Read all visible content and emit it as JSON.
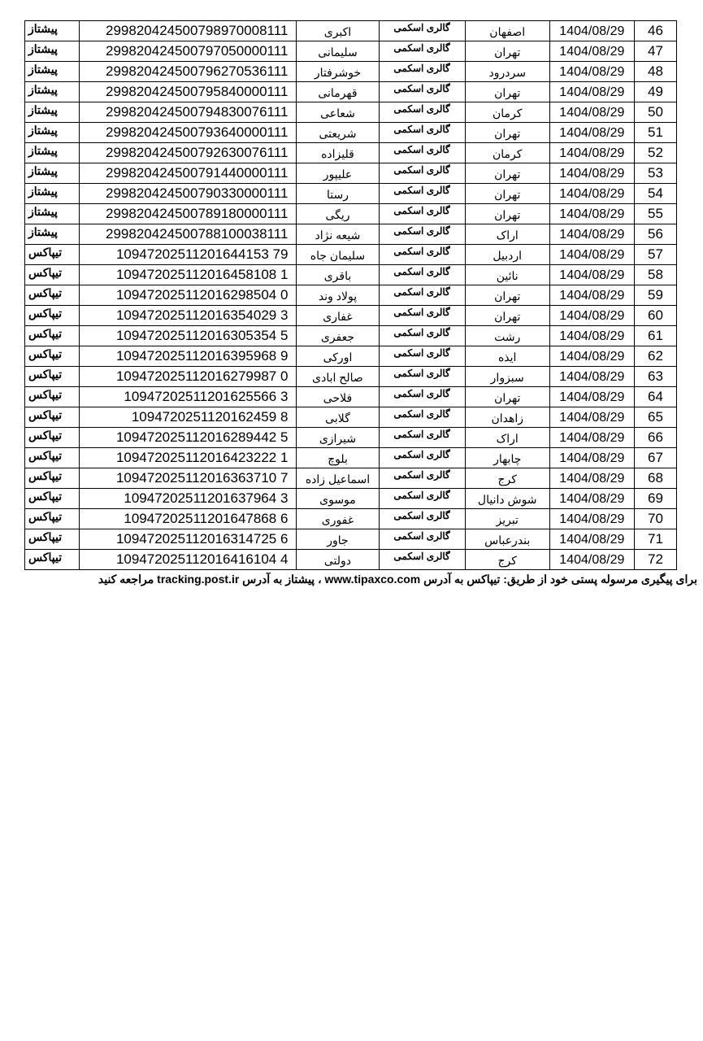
{
  "shop_name": "گالری اسکمی",
  "rows": [
    {
      "num": "46",
      "date": "1404/08/29",
      "city": "اصفهان",
      "name": "اکبری",
      "tracking": "299820424500798970008111",
      "carrier": "پیشتاز"
    },
    {
      "num": "47",
      "date": "1404/08/29",
      "city": "تهران",
      "name": "سلیمانی",
      "tracking": "299820424500797050000111",
      "carrier": "پیشتاز"
    },
    {
      "num": "48",
      "date": "1404/08/29",
      "city": "سردرود",
      "name": "خوشرفتار",
      "tracking": "299820424500796270536111",
      "carrier": "پیشتاز"
    },
    {
      "num": "49",
      "date": "1404/08/29",
      "city": "تهران",
      "name": "قهرمانی",
      "tracking": "299820424500795840000111",
      "carrier": "پیشتاز"
    },
    {
      "num": "50",
      "date": "1404/08/29",
      "city": "کرمان",
      "name": "شعاعی",
      "tracking": "299820424500794830076111",
      "carrier": "پیشتاز"
    },
    {
      "num": "51",
      "date": "1404/08/29",
      "city": "تهران",
      "name": "شریعتی",
      "tracking": "299820424500793640000111",
      "carrier": "پیشتاز"
    },
    {
      "num": "52",
      "date": "1404/08/29",
      "city": "کرمان",
      "name": "قلیزاده",
      "tracking": "299820424500792630076111",
      "carrier": "پیشتاز"
    },
    {
      "num": "53",
      "date": "1404/08/29",
      "city": "تهران",
      "name": "علیپور",
      "tracking": "299820424500791440000111",
      "carrier": "پیشتاز"
    },
    {
      "num": "54",
      "date": "1404/08/29",
      "city": "تهران",
      "name": "رستا",
      "tracking": "299820424500790330000111",
      "carrier": "پیشتاز"
    },
    {
      "num": "55",
      "date": "1404/08/29",
      "city": "تهران",
      "name": "ریگی",
      "tracking": "299820424500789180000111",
      "carrier": "پیشتاز"
    },
    {
      "num": "56",
      "date": "1404/08/29",
      "city": "اراک",
      "name": "شیعه نژاد",
      "tracking": "299820424500788100038111",
      "carrier": "پیشتاز"
    },
    {
      "num": "57",
      "date": "1404/08/29",
      "city": "اردبیل",
      "name": "سلیمان جاه",
      "tracking": "10947202511201644153 79",
      "carrier": "تیپاکس"
    },
    {
      "num": "58",
      "date": "1404/08/29",
      "city": "نائین",
      "name": "باقری",
      "tracking": "109472025112016458108 1",
      "carrier": "تیپاکس"
    },
    {
      "num": "59",
      "date": "1404/08/29",
      "city": "تهران",
      "name": "پولاد وند",
      "tracking": "109472025112016298504 0",
      "carrier": "تیپاکس"
    },
    {
      "num": "60",
      "date": "1404/08/29",
      "city": "تهران",
      "name": "غفاری",
      "tracking": "109472025112016354029 3",
      "carrier": "تیپاکس"
    },
    {
      "num": "61",
      "date": "1404/08/29",
      "city": "رشت",
      "name": "جعفری",
      "tracking": "109472025112016305354 5",
      "carrier": "تیپاکس"
    },
    {
      "num": "62",
      "date": "1404/08/29",
      "city": "ایذه",
      "name": "اورکی",
      "tracking": "109472025112016395968 9",
      "carrier": "تیپاکس"
    },
    {
      "num": "63",
      "date": "1404/08/29",
      "city": "سبزوار",
      "name": "صالح ابادی",
      "tracking": "109472025112016279987 0",
      "carrier": "تیپاکس"
    },
    {
      "num": "64",
      "date": "1404/08/29",
      "city": "تهران",
      "name": "فلاحی",
      "tracking": "10947202511201625566 3",
      "carrier": "تیپاکس"
    },
    {
      "num": "65",
      "date": "1404/08/29",
      "city": "زاهدان",
      "name": "گلابی",
      "tracking": "1094720251120162459 8",
      "carrier": "تیپاکس"
    },
    {
      "num": "66",
      "date": "1404/08/29",
      "city": "اراک",
      "name": "شیرازی",
      "tracking": "109472025112016289442 5",
      "carrier": "تیپاکس"
    },
    {
      "num": "67",
      "date": "1404/08/29",
      "city": "چابهار",
      "name": "بلوچ",
      "tracking": "109472025112016423222 1",
      "carrier": "تیپاکس"
    },
    {
      "num": "68",
      "date": "1404/08/29",
      "city": "کرج",
      "name": "اسماعیل زاده",
      "tracking": "109472025112016363710 7",
      "carrier": "تیپاکس"
    },
    {
      "num": "69",
      "date": "1404/08/29",
      "city": "شوش دانیال",
      "name": "موسوی",
      "tracking": "10947202511201637964 3",
      "carrier": "تیپاکس"
    },
    {
      "num": "70",
      "date": "1404/08/29",
      "city": "تبریز",
      "name": "غفوری",
      "tracking": "10947202511201647868 6",
      "carrier": "تیپاکس"
    },
    {
      "num": "71",
      "date": "1404/08/29",
      "city": "بندرعباس",
      "name": "جاور",
      "tracking": "109472025112016314725 6",
      "carrier": "تیپاکس"
    },
    {
      "num": "72",
      "date": "1404/08/29",
      "city": "کرج",
      "name": "دولتی",
      "tracking": "109472025112016416104 4",
      "carrier": "تیپاکس"
    }
  ],
  "footer": "برای پیگیری مرسوله پستی خود از طریق: تیپاکس به آدرس www.tipaxco.com ، پیشتاز به آدرس tracking.post.ir  مراجعه کنید"
}
